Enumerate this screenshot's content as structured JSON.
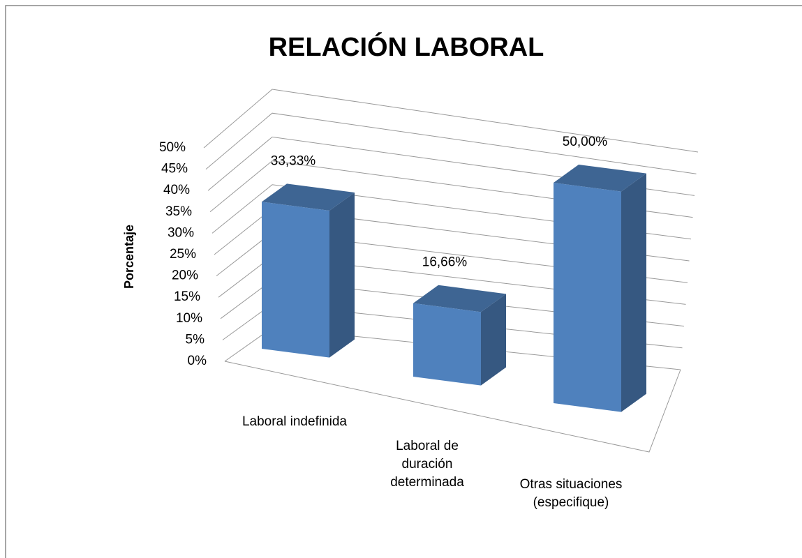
{
  "chart_data": {
    "type": "bar3d",
    "title": "RELACIÓN LABORAL",
    "ylabel": "Porcentaje",
    "categories": [
      "Laboral indefinida",
      "Laboral de duración determinada",
      "Otras situaciones (especifique)"
    ],
    "values": [
      33.33,
      16.66,
      50
    ],
    "value_labels": [
      "33,33%",
      "16,66%",
      "50,00%"
    ],
    "color": "#4f81bd",
    "ylim": [
      0,
      50
    ],
    "yticks": [
      {
        "value": 0,
        "label": "0%"
      },
      {
        "value": 5,
        "label": "5%"
      },
      {
        "value": 10,
        "label": "10%"
      },
      {
        "value": 15,
        "label": "15%"
      },
      {
        "value": 20,
        "label": "20%"
      },
      {
        "value": 25,
        "label": "25%"
      },
      {
        "value": 30,
        "label": "30%"
      },
      {
        "value": 35,
        "label": "35%"
      },
      {
        "value": 40,
        "label": "40%"
      },
      {
        "value": 45,
        "label": "45%"
      },
      {
        "value": 50,
        "label": "50%"
      }
    ],
    "grid": true
  }
}
